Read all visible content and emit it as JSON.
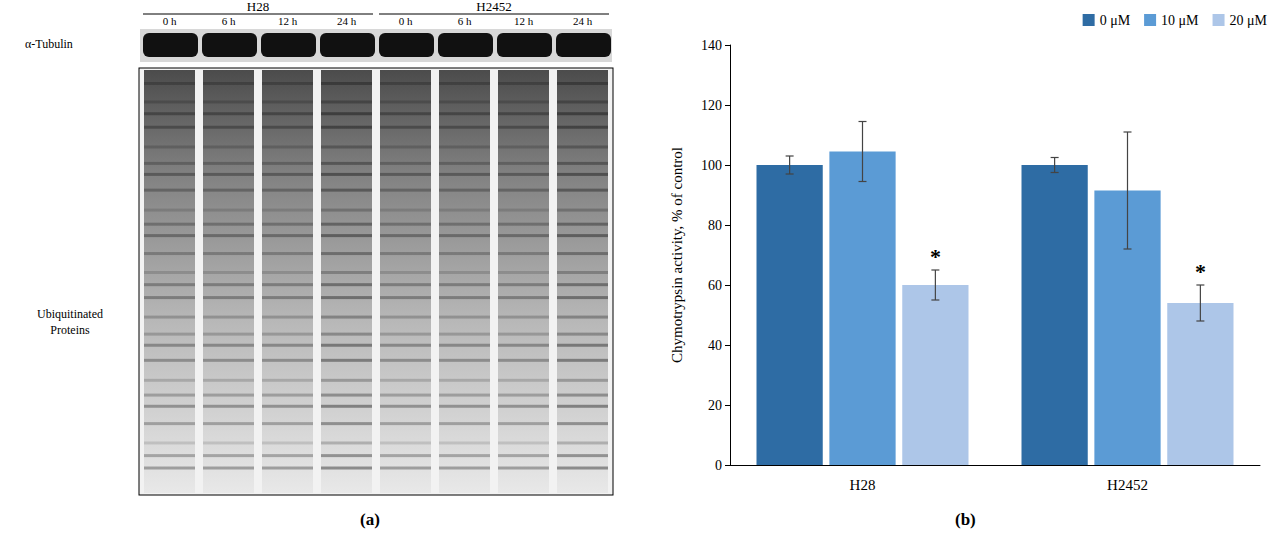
{
  "blot": {
    "panel_label": "(a)",
    "groups": [
      {
        "name": "H28",
        "lanes": [
          "0 h",
          "6 h",
          "12 h",
          "24 h"
        ]
      },
      {
        "name": "H2452",
        "lanes": [
          "0 h",
          "6 h",
          "12 h",
          "24 h"
        ]
      }
    ],
    "rows": [
      "α-Tubulin",
      "Ubiquitinated Proteins"
    ]
  },
  "chart_data": {
    "type": "bar",
    "panel_label": "(b)",
    "y_label": "Chymotrypsin activity, % of control",
    "categories": [
      "H28",
      "H2452"
    ],
    "series": [
      {
        "name": "0 μM",
        "color": "#2e6ca4",
        "values": [
          100,
          100
        ],
        "errors": [
          3,
          2.5
        ]
      },
      {
        "name": "10 μM",
        "color": "#5b9bd5",
        "values": [
          104.5,
          91.5
        ],
        "errors": [
          10,
          19.5
        ]
      },
      {
        "name": "20 μM",
        "color": "#adc6e8",
        "values": [
          60,
          54
        ],
        "errors": [
          5,
          6
        ]
      }
    ],
    "annotations": [
      {
        "category": "H28",
        "series": "20 μM",
        "text": "*"
      },
      {
        "category": "H2452",
        "series": "20 μM",
        "text": "*"
      }
    ],
    "ylim": [
      0,
      140
    ],
    "yticks": [
      0,
      20,
      40,
      60,
      80,
      100,
      120,
      140
    ],
    "grid": false,
    "legend": "top-right"
  }
}
